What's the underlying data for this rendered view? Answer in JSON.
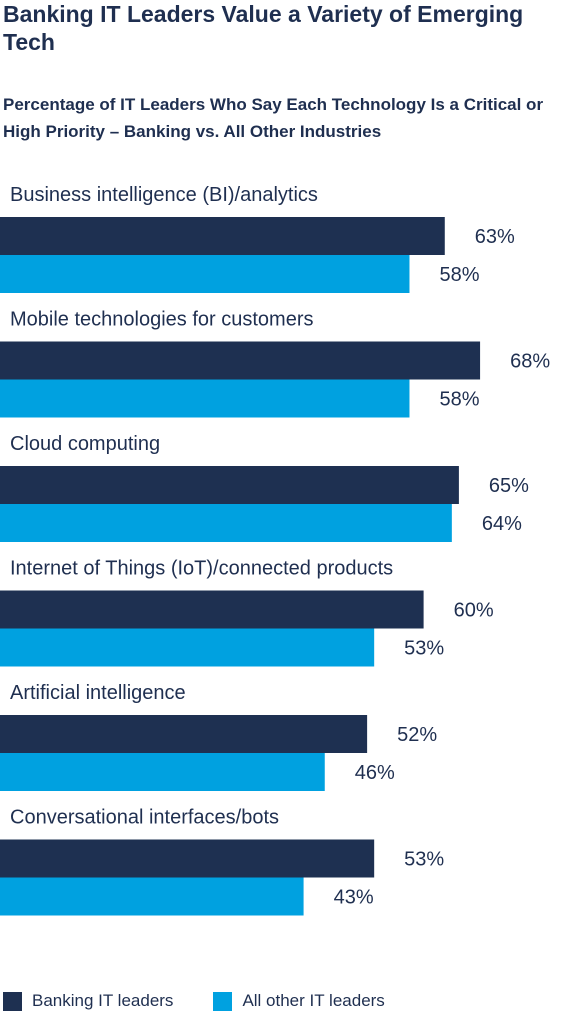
{
  "title": "Banking IT Leaders Value a Variety of Emerging Tech",
  "subtitle": "Percentage of IT Leaders Who Say Each Technology Is a Critical or High Priority – Banking vs. All Other Industries",
  "colors": {
    "banking": "#1e3051",
    "other": "#00a1e0",
    "text": "#1f2f50"
  },
  "chart_data": {
    "type": "bar",
    "orientation": "horizontal",
    "title": "Banking IT Leaders Value a Variety of Emerging Tech",
    "subtitle": "Percentage of IT Leaders Who Say Each Technology Is a Critical or High Priority – Banking vs. All Other Industries",
    "categories": [
      "Business intelligence (BI)/analytics",
      "Mobile technologies for customers",
      "Cloud computing",
      "Internet of Things (IoT)/connected products",
      "Artificial intelligence",
      "Conversational interfaces/bots"
    ],
    "series": [
      {
        "name": "Banking IT leaders",
        "values": [
          63,
          68,
          65,
          60,
          52,
          53
        ],
        "labels": [
          "63%",
          "68%",
          "65%",
          "60%",
          "52%",
          "53%"
        ]
      },
      {
        "name": "All other IT leaders",
        "values": [
          58,
          58,
          64,
          53,
          46,
          43
        ],
        "labels": [
          "58%",
          "58%",
          "64%",
          "53%",
          "46%",
          "43%"
        ]
      }
    ],
    "unit": "%",
    "xlim": [
      0,
      100
    ],
    "grid": false,
    "legend_position": "bottom-left"
  },
  "legend": {
    "items": [
      {
        "label": "Banking IT leaders"
      },
      {
        "label": "All other IT leaders"
      }
    ]
  }
}
